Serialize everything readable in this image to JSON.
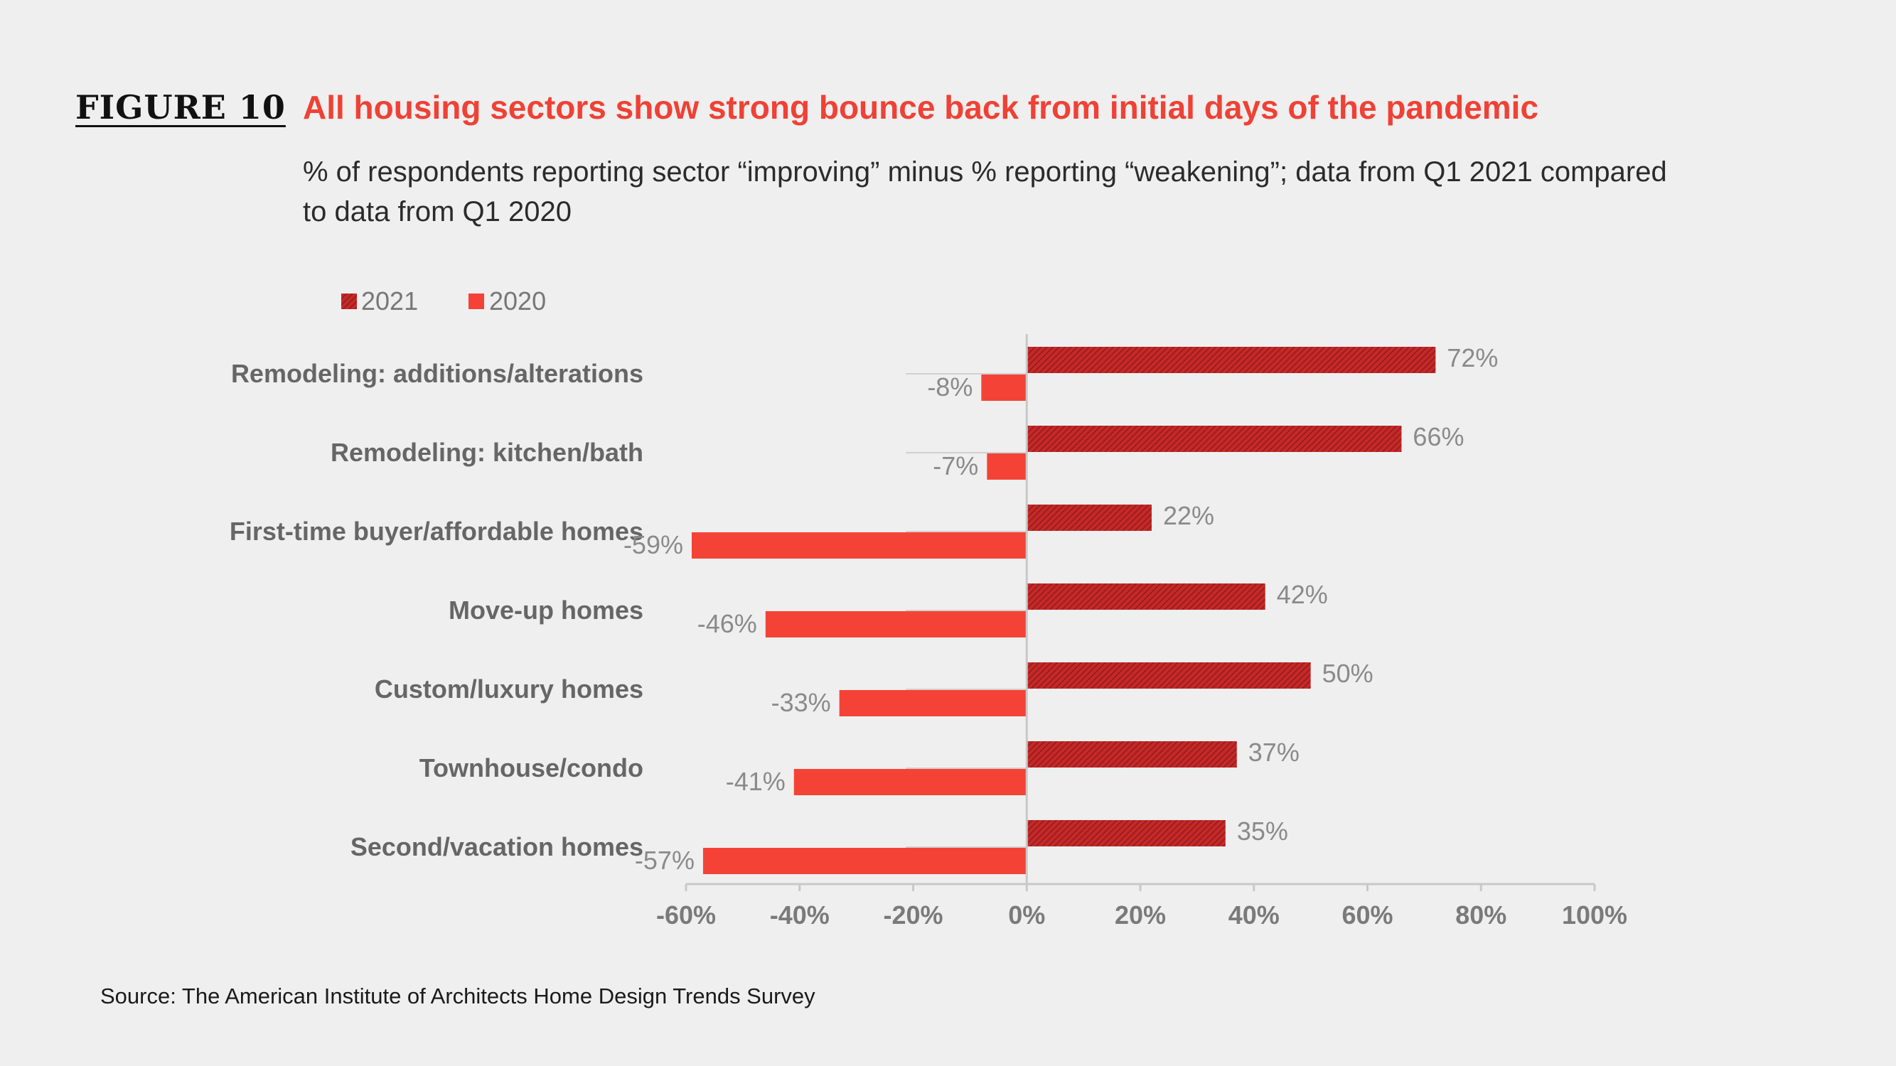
{
  "figure": {
    "label": "FIGURE 10",
    "title": "All housing sectors show strong bounce back from initial days of the pandemic",
    "subtitle": "% of respondents reporting sector “improving” minus % reporting “weakening”; data from Q1 2021 compared to data from Q1 2020",
    "source": "Source: The American Institute of Architects Home Design Trends Survey"
  },
  "colors": {
    "accent": "#ef4135",
    "bar_2020": "#f44336",
    "bar_2021": "#c62828",
    "hatch_2021": "#8e1c1c"
  },
  "chart_data": {
    "type": "bar",
    "orientation": "horizontal",
    "categories": [
      "Remodeling: additions/alterations",
      "Remodeling: kitchen/bath",
      "First-time buyer/affordable homes",
      "Move-up homes",
      "Custom/luxury homes",
      "Townhouse/condo",
      "Second/vacation homes"
    ],
    "series": [
      {
        "name": "2021",
        "values": [
          72,
          66,
          22,
          42,
          50,
          37,
          35
        ],
        "labels": [
          "72%",
          "66%",
          "22%",
          "42%",
          "50%",
          "37%",
          "35%"
        ],
        "pattern": "hatched"
      },
      {
        "name": "2020",
        "values": [
          -8,
          -7,
          -59,
          -46,
          -33,
          -41,
          -57
        ],
        "labels": [
          "-8%",
          "-7%",
          "-59%",
          "-46%",
          "-33%",
          "-41%",
          "-57%"
        ],
        "pattern": "solid"
      }
    ],
    "xlim": [
      -60,
      100
    ],
    "xticks": [
      -60,
      -40,
      -20,
      0,
      20,
      40,
      60,
      80,
      100
    ],
    "xtick_labels": [
      "-60%",
      "-40%",
      "-20%",
      "0%",
      "20%",
      "40%",
      "60%",
      "80%",
      "100%"
    ],
    "legend_position": "top-left",
    "grid": false
  }
}
